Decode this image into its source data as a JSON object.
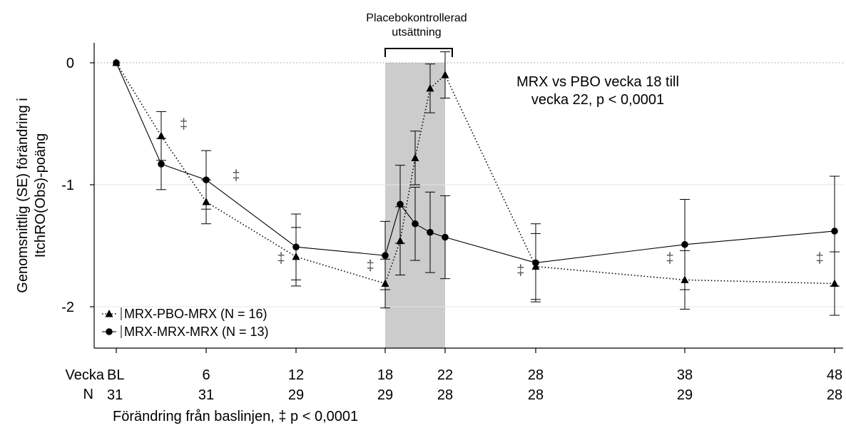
{
  "chart_data": {
    "type": "line",
    "ylabel": "Genomsnittlig (SE) förändring i ItchRO(Obs)-poäng",
    "xlabel": "Förändring från baslinjen, ‡ p < 0,0001",
    "ylim": [
      -2.25,
      0.15
    ],
    "yticks": [
      0,
      -1,
      -2
    ],
    "ytick_labels": [
      "0",
      "-1",
      "-2"
    ],
    "x_row_label": "Vecka",
    "n_row_label": "N",
    "x_ticks": [
      {
        "week": 0,
        "label": "BL",
        "n": "31"
      },
      {
        "week": 6,
        "label": "6",
        "n": "31"
      },
      {
        "week": 12,
        "label": "12",
        "n": "29"
      },
      {
        "week": 18,
        "label": "18",
        "n": "29"
      },
      {
        "week": 22,
        "label": "22",
        "n": "28"
      },
      {
        "week": 28,
        "label": "28",
        "n": "28"
      },
      {
        "week": 38,
        "label": "38",
        "n": "29"
      },
      {
        "week": 48,
        "label": "48",
        "n": "28"
      }
    ],
    "shaded_region": {
      "from_week": 18,
      "to_week": 22,
      "label": "Placebokontrollerad utsättning"
    },
    "annotation": "MRX vs PBO vecka 18 till vecka 22, p < 0,0001",
    "series": [
      {
        "name": "MRX-PBO-MRX (N = 16)",
        "marker": "triangle",
        "line_style": "dotted",
        "points": [
          {
            "week": 0,
            "mean": 0,
            "err": 0
          },
          {
            "week": 3,
            "mean": -0.6,
            "err": 0.2
          },
          {
            "week": 6,
            "mean": -1.14,
            "err": 0.18
          },
          {
            "week": 12,
            "mean": -1.59,
            "err": 0.24
          },
          {
            "week": 18,
            "mean": -1.81,
            "err": 0.2
          },
          {
            "week": 19,
            "mean": -1.46,
            "err": 0.28
          },
          {
            "week": 20,
            "mean": -0.78,
            "err": 0.22
          },
          {
            "week": 21,
            "mean": -0.21,
            "err": 0.2
          },
          {
            "week": 22,
            "mean": -0.1,
            "err": 0.19
          },
          {
            "week": 28,
            "mean": -1.67,
            "err": 0.27
          },
          {
            "week": 38,
            "mean": -1.78,
            "err": 0.24
          },
          {
            "week": 48,
            "mean": -1.81,
            "err": 0.26
          }
        ]
      },
      {
        "name": "MRX-MRX-MRX (N = 13)",
        "marker": "circle",
        "line_style": "solid",
        "points": [
          {
            "week": 0,
            "mean": 0,
            "err": 0
          },
          {
            "week": 3,
            "mean": -0.83,
            "err": 0.21
          },
          {
            "week": 6,
            "mean": -0.96,
            "err": 0.24
          },
          {
            "week": 12,
            "mean": -1.51,
            "err": 0.27
          },
          {
            "week": 18,
            "mean": -1.58,
            "err": 0.28
          },
          {
            "week": 19,
            "mean": -1.16,
            "err": 0.32
          },
          {
            "week": 20,
            "mean": -1.32,
            "err": 0.3
          },
          {
            "week": 21,
            "mean": -1.39,
            "err": 0.33
          },
          {
            "week": 22,
            "mean": -1.43,
            "err": 0.34
          },
          {
            "week": 28,
            "mean": -1.64,
            "err": 0.32
          },
          {
            "week": 38,
            "mean": -1.49,
            "err": 0.37
          },
          {
            "week": 48,
            "mean": -1.38,
            "err": 0.45
          }
        ]
      }
    ],
    "significance_markers": [
      {
        "week": 4.5,
        "y": -0.5,
        "text": "‡"
      },
      {
        "week": 8,
        "y": -0.92,
        "text": "‡"
      },
      {
        "week": 11,
        "y": -1.6,
        "text": "‡"
      },
      {
        "week": 17,
        "y": -1.66,
        "text": "‡"
      },
      {
        "week": 27,
        "y": -1.7,
        "text": "‡"
      },
      {
        "week": 37,
        "y": -1.6,
        "text": "‡"
      },
      {
        "week": 47,
        "y": -1.6,
        "text": "‡"
      }
    ],
    "legend_position": "bottom-left",
    "grid": "dotted horizontal line at 0, light horizontal lines at -1 and -2"
  }
}
